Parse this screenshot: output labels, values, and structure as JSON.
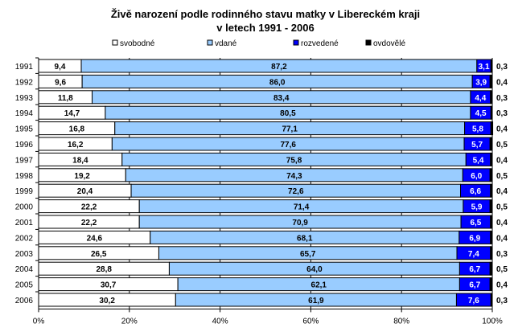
{
  "chart_data": {
    "type": "bar",
    "orientation": "horizontal",
    "stacked": "percent",
    "title": "Živě narození podle rodinného stavu matky v Libereckém kraji",
    "subtitle": "v letech 1991 - 2006",
    "xlabel": "",
    "ylabel": "",
    "xlim": [
      0,
      100
    ],
    "x_ticks": [
      "0%",
      "20%",
      "40%",
      "60%",
      "80%",
      "100%"
    ],
    "legend_position": "top",
    "categories": [
      "1991",
      "1992",
      "1993",
      "1994",
      "1995",
      "1996",
      "1997",
      "1998",
      "1999",
      "2000",
      "2001",
      "2002",
      "2003",
      "2004",
      "2005",
      "2006"
    ],
    "category_labels": [
      "1991",
      "1992",
      "1993",
      "1994",
      "1995",
      "1996",
      "1997",
      "1998",
      "1999",
      "2000",
      "2001",
      "2002",
      "2003",
      "2004",
      "2005",
      "2006"
    ],
    "series": [
      {
        "name": "svobodné",
        "color": "#ffffff",
        "label_color": "#000000",
        "values": [
          9.4,
          9.6,
          11.8,
          14.7,
          16.8,
          16.2,
          18.4,
          19.2,
          20.4,
          22.2,
          22.2,
          24.6,
          26.5,
          28.8,
          30.7,
          30.2
        ],
        "labels": [
          "9,4",
          "9,6",
          "11,8",
          "14,7",
          "16,8",
          "16,2",
          "18,4",
          "19,2",
          "20,4",
          "22,2",
          "22,2",
          "24,6",
          "26,5",
          "28,8",
          "30,7",
          "30,2"
        ]
      },
      {
        "name": "vdané",
        "color": "#99ccff",
        "label_color": "#000000",
        "values": [
          87.2,
          86.0,
          83.4,
          80.5,
          77.1,
          77.6,
          75.8,
          74.3,
          72.6,
          71.4,
          70.9,
          68.1,
          65.7,
          64.0,
          62.1,
          61.9
        ],
        "labels": [
          "87,2",
          "86,0",
          "83,4",
          "80,5",
          "77,1",
          "77,6",
          "75,8",
          "74,3",
          "72,6",
          "71,4",
          "70,9",
          "68,1",
          "65,7",
          "64,0",
          "62,1",
          "61,9"
        ]
      },
      {
        "name": "rozvedené",
        "color": "#0000ff",
        "label_color": "#ffffff",
        "values": [
          3.1,
          3.9,
          4.4,
          4.5,
          5.8,
          5.7,
          5.4,
          6.0,
          6.6,
          5.9,
          6.5,
          6.9,
          7.4,
          6.7,
          6.7,
          7.6
        ],
        "labels": [
          "3,1",
          "3,9",
          "4,4",
          "4,5",
          "5,8",
          "5,7",
          "5,4",
          "6,0",
          "6,6",
          "5,9",
          "6,5",
          "6,9",
          "7,4",
          "6,7",
          "6,7",
          "7,6"
        ]
      },
      {
        "name": "ovdovělé",
        "color": "#000000",
        "label_color": "#000000",
        "values": [
          0.3,
          0.4,
          0.3,
          0.3,
          0.4,
          0.5,
          0.4,
          0.5,
          0.4,
          0.5,
          0.4,
          0.4,
          0.3,
          0.5,
          0.4,
          0.3
        ],
        "labels": [
          "0,3",
          "0,4",
          "0,3",
          "0,3",
          "0,4",
          "0,5",
          "0,4",
          "0,5",
          "0,4",
          "0,5",
          "0,4",
          "0,4",
          "0,3",
          "0,5",
          "0,4",
          "0,3"
        ]
      }
    ]
  }
}
